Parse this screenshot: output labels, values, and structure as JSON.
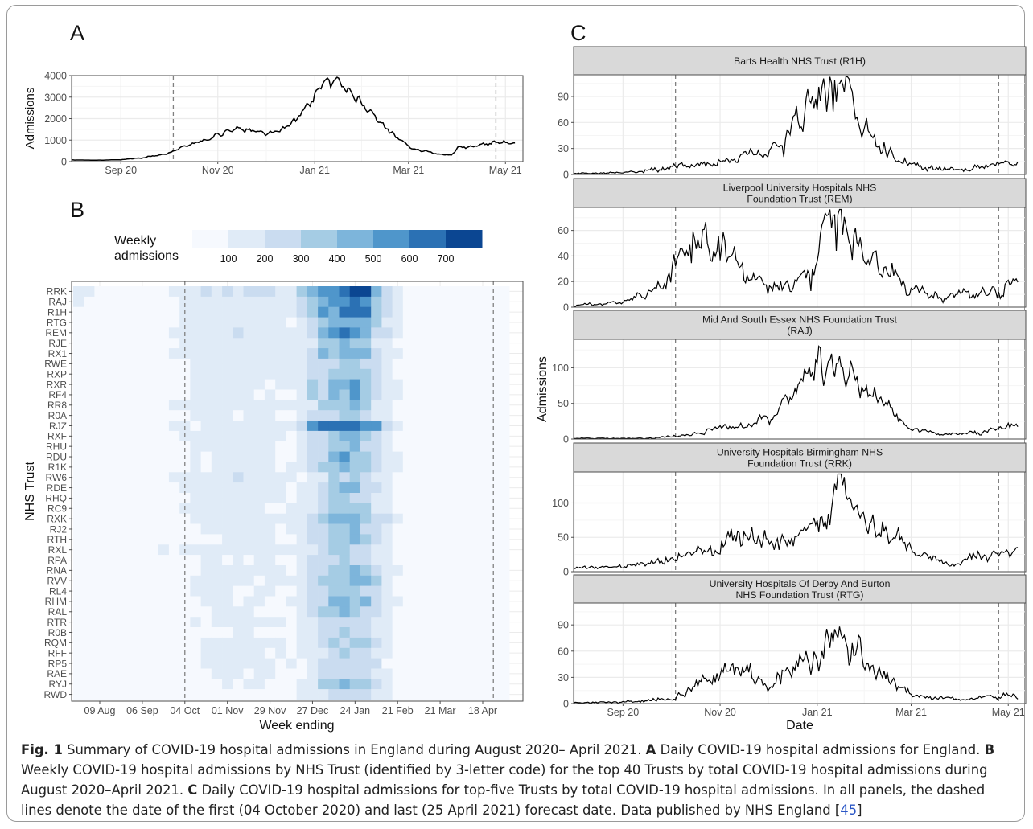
{
  "figure": {
    "caption": {
      "label": "Fig. 1",
      "text1": "Summary of COVID-19 hospital admissions in England during August 2020– April 2021.",
      "a_label": "A",
      "a_text": "Daily COVID-19 hospital admissions for England.",
      "b_label": "B",
      "b_text": "Weekly COVID-19 hospital admissions by NHS Trust (identified by 3-letter code) for the top 40 Trusts by total COVID-19 hospital admissions during August 2020–April 2021.",
      "c_label": "C",
      "c_text": "Daily COVID-19 hospital admissions for top-five Trusts by total COVID-19 hospital admissions. In all panels, the dashed lines denote the date of the first (04 October 2020) and last (25 April 2021) forecast date. Data published by NHS England [",
      "ref": "45",
      "end": "]"
    }
  },
  "chart_data": [
    {
      "panel": "A",
      "type": "line",
      "ylabel": "Admissions",
      "ylim": [
        0,
        4000
      ],
      "yticks": [
        0,
        1000,
        2000,
        3000,
        4000
      ],
      "xlim": [
        "2020-08-01",
        "2021-05-12"
      ],
      "xticks": [
        {
          "date": "2020-09-01",
          "label": "Sep 20"
        },
        {
          "date": "2020-11-01",
          "label": "Nov 20"
        },
        {
          "date": "2021-01-01",
          "label": "Jan 21"
        },
        {
          "date": "2021-03-01",
          "label": "Mar 21"
        },
        {
          "date": "2021-05-01",
          "label": "May 21"
        }
      ],
      "vlines": [
        "2020-10-04",
        "2021-04-25"
      ],
      "start": "2020-08-01",
      "end": "2021-05-07",
      "knots": [
        [
          "2020-08-01",
          80
        ],
        [
          "2020-08-20",
          70
        ],
        [
          "2020-09-01",
          90
        ],
        [
          "2020-09-15",
          180
        ],
        [
          "2020-09-30",
          380
        ],
        [
          "2020-10-15",
          800
        ],
        [
          "2020-10-31",
          1200
        ],
        [
          "2020-11-12",
          1550
        ],
        [
          "2020-11-22",
          1400
        ],
        [
          "2020-12-01",
          1300
        ],
        [
          "2020-12-10",
          1450
        ],
        [
          "2020-12-20",
          1900
        ],
        [
          "2020-12-29",
          2800
        ],
        [
          "2021-01-05",
          3500
        ],
        [
          "2021-01-12",
          3800
        ],
        [
          "2021-01-16",
          3750
        ],
        [
          "2021-01-22",
          3400
        ],
        [
          "2021-01-31",
          2700
        ],
        [
          "2021-02-10",
          1900
        ],
        [
          "2021-02-20",
          1200
        ],
        [
          "2021-03-01",
          700
        ],
        [
          "2021-03-10",
          500
        ],
        [
          "2021-03-20",
          350
        ],
        [
          "2021-03-28",
          300
        ],
        [
          "2021-04-01",
          650
        ],
        [
          "2021-04-10",
          700
        ],
        [
          "2021-04-20",
          850
        ],
        [
          "2021-04-30",
          900
        ],
        [
          "2021-05-07",
          850
        ]
      ]
    },
    {
      "panel": "B",
      "type": "heatmap",
      "xlabel": "Week ending",
      "ylabel": "NHS Trust",
      "legend_title": "Weekly admissions",
      "legend_ticks": [
        100,
        200,
        300,
        400,
        500,
        600,
        700
      ],
      "legend_colors": [
        "#f6f9fe",
        "#e0ebf7",
        "#cadcf0",
        "#a5cce4",
        "#7db5db",
        "#4f96cb",
        "#2b71b4",
        "#0b4692"
      ],
      "vlines": [
        "2020-10-04",
        "2021-04-25"
      ],
      "xticks": [
        "09 Aug",
        "06 Sep",
        "04 Oct",
        "01 Nov",
        "29 Nov",
        "27 Dec",
        "24 Jan",
        "21 Feb",
        "21 Mar",
        "18 Apr"
      ],
      "trusts": [
        "RRK",
        "RAJ",
        "R1H",
        "RTG",
        "REM",
        "RJE",
        "RX1",
        "RWE",
        "RXP",
        "RXR",
        "RF4",
        "RR8",
        "R0A",
        "RJZ",
        "RXF",
        "RHU",
        "RDU",
        "R1K",
        "RW6",
        "RDE",
        "RHQ",
        "RC9",
        "RXK",
        "RJ2",
        "RTH",
        "RXL",
        "RPA",
        "RNA",
        "RVV",
        "RL4",
        "RHM",
        "RAL",
        "RTR",
        "R0B",
        "RQM",
        "RFF",
        "RP5",
        "RAE",
        "RYJ",
        "RWD"
      ],
      "peak": [
        750,
        600,
        650,
        470,
        540,
        380,
        470,
        380,
        380,
        480,
        470,
        380,
        330,
        800,
        420,
        400,
        460,
        420,
        300,
        420,
        340,
        320,
        460,
        420,
        390,
        310,
        340,
        420,
        450,
        400,
        420,
        380,
        290,
        300,
        360,
        280,
        300,
        260,
        380,
        250
      ],
      "base": [
        200,
        160,
        170,
        150,
        200,
        160,
        170,
        150,
        140,
        130,
        120,
        160,
        110,
        150,
        150,
        140,
        140,
        130,
        180,
        140,
        150,
        130,
        130,
        130,
        120,
        170,
        120,
        140,
        120,
        120,
        110,
        110,
        130,
        100,
        130,
        130,
        130,
        120,
        100,
        90
      ],
      "tail": [
        180,
        170,
        90,
        90,
        70,
        110,
        80,
        70,
        120,
        70,
        60,
        60,
        70,
        60,
        60,
        60,
        60,
        60,
        60,
        60,
        60,
        60,
        60,
        60,
        60,
        60,
        60,
        60,
        60,
        60,
        60,
        60,
        60,
        60,
        60,
        60,
        60,
        60,
        60,
        60
      ]
    },
    {
      "panel": "C",
      "type": "line",
      "xlabel": "Date",
      "ylabel": "Admissions",
      "xlim": [
        "2020-08-01",
        "2021-05-12"
      ],
      "xticks": [
        {
          "date": "2020-09-01",
          "label": "Sep 20"
        },
        {
          "date": "2020-11-01",
          "label": "Nov 20"
        },
        {
          "date": "2021-01-01",
          "label": "Jan 21"
        },
        {
          "date": "2021-03-01",
          "label": "Mar 21"
        },
        {
          "date": "2021-05-01",
          "label": "May 21"
        }
      ],
      "vlines": [
        "2020-10-04",
        "2021-04-25"
      ],
      "start": "2020-08-01",
      "end": "2021-05-07",
      "facets": [
        {
          "strip": [
            "Barts Health NHS Trust (R1H)"
          ],
          "ylim": [
            0,
            115
          ],
          "yticks": [
            0,
            30,
            60,
            90
          ],
          "noise": 0.22,
          "knots": [
            [
              "2020-08-01",
              1
            ],
            [
              "2020-09-01",
              2
            ],
            [
              "2020-10-01",
              8
            ],
            [
              "2020-11-01",
              15
            ],
            [
              "2020-12-01",
              25
            ],
            [
              "2020-12-15",
              45
            ],
            [
              "2020-12-28",
              80
            ],
            [
              "2021-01-05",
              98
            ],
            [
              "2021-01-15",
              100
            ],
            [
              "2021-01-25",
              80
            ],
            [
              "2021-02-05",
              45
            ],
            [
              "2021-02-20",
              20
            ],
            [
              "2021-03-10",
              8
            ],
            [
              "2021-04-01",
              5
            ],
            [
              "2021-04-25",
              12
            ],
            [
              "2021-05-07",
              10
            ]
          ]
        },
        {
          "strip": [
            "Liverpool University Hospitals NHS",
            "Foundation Trust (REM)"
          ],
          "ylim": [
            0,
            78
          ],
          "yticks": [
            0,
            20,
            40,
            60
          ],
          "noise": 0.25,
          "knots": [
            [
              "2020-08-01",
              1
            ],
            [
              "2020-09-01",
              4
            ],
            [
              "2020-09-25",
              15
            ],
            [
              "2020-10-05",
              35
            ],
            [
              "2020-10-15",
              50
            ],
            [
              "2020-10-31",
              45
            ],
            [
              "2020-11-15",
              25
            ],
            [
              "2020-12-01",
              15
            ],
            [
              "2020-12-20",
              20
            ],
            [
              "2021-01-01",
              30
            ],
            [
              "2021-01-08",
              55
            ],
            [
              "2021-01-18",
              65
            ],
            [
              "2021-01-28",
              45
            ],
            [
              "2021-02-10",
              30
            ],
            [
              "2021-03-01",
              15
            ],
            [
              "2021-03-20",
              8
            ],
            [
              "2021-04-10",
              10
            ],
            [
              "2021-04-25",
              15
            ],
            [
              "2021-05-07",
              18
            ]
          ]
        },
        {
          "strip": [
            "Mid And South Essex NHS Foundation Trust",
            "(RAJ)"
          ],
          "ylim": [
            0,
            140
          ],
          "yticks": [
            0,
            50,
            100
          ],
          "noise": 0.18,
          "knots": [
            [
              "2020-08-01",
              1
            ],
            [
              "2020-09-15",
              1
            ],
            [
              "2020-10-10",
              5
            ],
            [
              "2020-11-01",
              15
            ],
            [
              "2020-11-20",
              20
            ],
            [
              "2020-12-05",
              35
            ],
            [
              "2020-12-20",
              70
            ],
            [
              "2021-01-01",
              100
            ],
            [
              "2021-01-08",
              120
            ],
            [
              "2021-01-20",
              100
            ],
            [
              "2021-02-01",
              70
            ],
            [
              "2021-02-15",
              40
            ],
            [
              "2021-03-01",
              15
            ],
            [
              "2021-03-20",
              6
            ],
            [
              "2021-04-15",
              10
            ],
            [
              "2021-05-07",
              18
            ]
          ]
        },
        {
          "strip": [
            "University Hospitals Birmingham NHS",
            "Foundation Trust (RRK)"
          ],
          "ylim": [
            0,
            145
          ],
          "yticks": [
            0,
            50,
            100
          ],
          "noise": 0.2,
          "knots": [
            [
              "2020-08-01",
              5
            ],
            [
              "2020-09-01",
              8
            ],
            [
              "2020-09-20",
              15
            ],
            [
              "2020-10-15",
              25
            ],
            [
              "2020-11-01",
              40
            ],
            [
              "2020-11-20",
              55
            ],
            [
              "2020-12-01",
              50
            ],
            [
              "2020-12-10",
              40
            ],
            [
              "2020-12-25",
              55
            ],
            [
              "2021-01-08",
              85
            ],
            [
              "2021-01-15",
              120
            ],
            [
              "2021-01-25",
              100
            ],
            [
              "2021-02-10",
              60
            ],
            [
              "2021-02-28",
              35
            ],
            [
              "2021-03-15",
              20
            ],
            [
              "2021-03-28",
              8
            ],
            [
              "2021-04-05",
              22
            ],
            [
              "2021-04-25",
              25
            ],
            [
              "2021-05-07",
              28
            ]
          ]
        },
        {
          "strip": [
            "University Hospitals Of Derby And Burton",
            "NHS Foundation Trust (RTG)"
          ],
          "ylim": [
            0,
            115
          ],
          "yticks": [
            0,
            30,
            60,
            90
          ],
          "noise": 0.22,
          "knots": [
            [
              "2020-08-01",
              1
            ],
            [
              "2020-09-01",
              2
            ],
            [
              "2020-10-01",
              5
            ],
            [
              "2020-10-15",
              20
            ],
            [
              "2020-11-01",
              38
            ],
            [
              "2020-11-15",
              42
            ],
            [
              "2020-12-01",
              25
            ],
            [
              "2020-12-20",
              40
            ],
            [
              "2021-01-01",
              50
            ],
            [
              "2021-01-10",
              75
            ],
            [
              "2021-01-18",
              85
            ],
            [
              "2021-01-25",
              70
            ],
            [
              "2021-02-10",
              35
            ],
            [
              "2021-03-01",
              10
            ],
            [
              "2021-04-01",
              4
            ],
            [
              "2021-04-20",
              10
            ],
            [
              "2021-05-07",
              8
            ]
          ]
        }
      ]
    }
  ],
  "labels": {
    "A": "A",
    "B": "B",
    "C": "C"
  },
  "colors": {
    "line": "#000000",
    "panel_border": "#4d4d4d",
    "strip_fill": "#d9d9d9",
    "grid_major": "#ebebeb",
    "grid_minor": "#f5f5f5",
    "vline": "#808080"
  }
}
